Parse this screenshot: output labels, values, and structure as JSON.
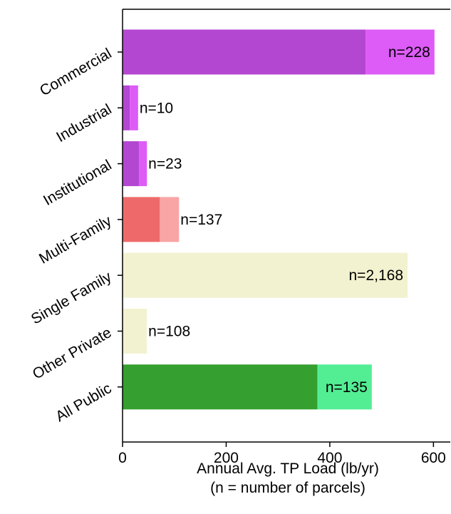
{
  "chart_data": {
    "type": "bar",
    "orientation": "horizontal",
    "categories": [
      "Commercial",
      "Industrial",
      "Institutional",
      "Multi-Family",
      "Single Family",
      "Other Private",
      "All Public"
    ],
    "series": [
      {
        "values": [
          469,
          14,
          32,
          72,
          550,
          47,
          376
        ]
      },
      {
        "values": [
          133,
          16,
          15,
          37,
          0,
          0,
          105
        ]
      }
    ],
    "bar_labels": [
      "n=228",
      "n=10",
      "n=23",
      "n=137",
      "n=2,168",
      "n=108",
      "n=135"
    ],
    "colors": {
      "primary": [
        "#b347d1",
        "#b347d1",
        "#b347d1",
        "#ee6a6a",
        "#f2f2d0",
        "#f2f2d0",
        "#35a02f"
      ],
      "secondary": [
        "#dd5bf7",
        "#dd5bf7",
        "#dd5bf7",
        "#f9a5a5",
        "#f2f2d0",
        "#f2f2d0",
        "#53ed94"
      ]
    },
    "xlabel": "Annual Avg. TP Load (lb/yr)",
    "xlabel_line2": "(n = number of parcels)",
    "ylabel": "",
    "xlim": [
      0,
      620
    ],
    "xticks": [
      0,
      200,
      400,
      600
    ],
    "grid": false
  }
}
